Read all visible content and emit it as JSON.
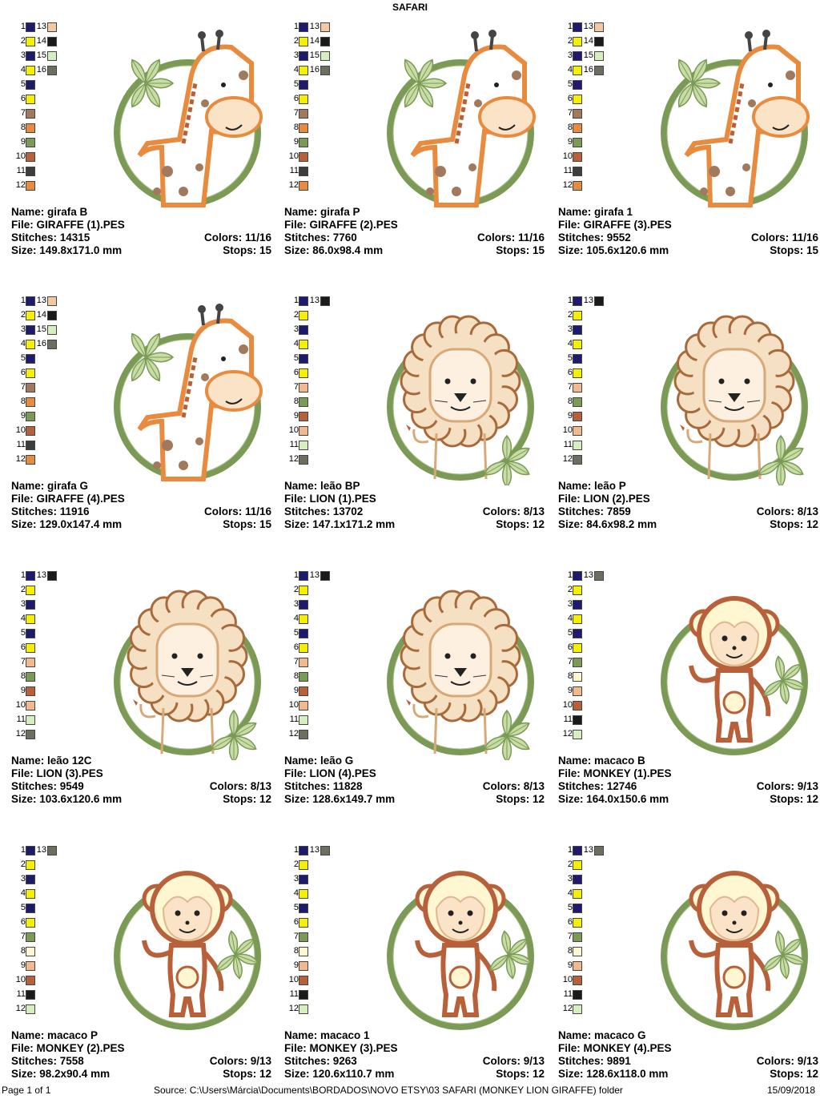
{
  "page_title": "SAFARI",
  "colors": {
    "1": "#1e1a6e",
    "2": "#f5f000",
    "3": "#1e1a6e",
    "4": "#f5f000",
    "navy": "#1e1a6e",
    "yellow": "#f5f000",
    "peach": "#f3c9a3",
    "black": "#1a1a1a",
    "lightgreen": "#d6efc0",
    "grey": "#6e6e60",
    "brown": "#a17a5d",
    "orange": "#e98b3f",
    "olive": "#7a9a55",
    "rust": "#b8603a",
    "dark": "#3d3d3d",
    "tan": "#f2b890",
    "cream": "#fff6d2"
  },
  "labels": {
    "name": "Name:",
    "file": "File:",
    "stitches": "Stitches:",
    "size": "Size:",
    "colors": "Colors:",
    "stops": "Stops:"
  },
  "designs": [
    {
      "name": "girafa B",
      "file": "GIRAFFE (1).PES",
      "stitches": "14315",
      "colors": "11/16",
      "size": "149.8x171.0 mm",
      "stops": "15",
      "animal": "giraffe",
      "swatches": [
        [
          "1",
          "navy",
          "13",
          "peach"
        ],
        [
          "2",
          "yellow",
          "14",
          "black"
        ],
        [
          "3",
          "navy",
          "15",
          "lightgreen"
        ],
        [
          "4",
          "yellow",
          "16",
          "grey"
        ],
        [
          "5",
          "navy"
        ],
        [
          "6",
          "yellow"
        ],
        [
          "7",
          "brown"
        ],
        [
          "8",
          "orange"
        ],
        [
          "9",
          "olive"
        ],
        [
          "10",
          "rust"
        ],
        [
          "11",
          "dark"
        ],
        [
          "12",
          "orange"
        ]
      ]
    },
    {
      "name": "girafa P",
      "file": "GIRAFFE (2).PES",
      "stitches": "7760",
      "colors": "11/16",
      "size": "86.0x98.4 mm",
      "stops": "15",
      "animal": "giraffe",
      "swatches": [
        [
          "1",
          "navy",
          "13",
          "peach"
        ],
        [
          "2",
          "yellow",
          "14",
          "black"
        ],
        [
          "3",
          "navy",
          "15",
          "lightgreen"
        ],
        [
          "4",
          "yellow",
          "16",
          "grey"
        ],
        [
          "5",
          "navy"
        ],
        [
          "6",
          "yellow"
        ],
        [
          "7",
          "brown"
        ],
        [
          "8",
          "orange"
        ],
        [
          "9",
          "olive"
        ],
        [
          "10",
          "rust"
        ],
        [
          "11",
          "dark"
        ],
        [
          "12",
          "orange"
        ]
      ]
    },
    {
      "name": "girafa 1",
      "file": "GIRAFFE (3).PES",
      "stitches": "9552",
      "colors": "11/16",
      "size": "105.6x120.6 mm",
      "stops": "15",
      "animal": "giraffe",
      "swatches": [
        [
          "1",
          "navy",
          "13",
          "peach"
        ],
        [
          "2",
          "yellow",
          "14",
          "black"
        ],
        [
          "3",
          "navy",
          "15",
          "lightgreen"
        ],
        [
          "4",
          "yellow",
          "16",
          "grey"
        ],
        [
          "5",
          "navy"
        ],
        [
          "6",
          "yellow"
        ],
        [
          "7",
          "brown"
        ],
        [
          "8",
          "orange"
        ],
        [
          "9",
          "olive"
        ],
        [
          "10",
          "rust"
        ],
        [
          "11",
          "dark"
        ],
        [
          "12",
          "orange"
        ]
      ]
    },
    {
      "name": "girafa G",
      "file": "GIRAFFE (4).PES",
      "stitches": "11916",
      "colors": "11/16",
      "size": "129.0x147.4 mm",
      "stops": "15",
      "animal": "giraffe",
      "swatches": [
        [
          "1",
          "navy",
          "13",
          "peach"
        ],
        [
          "2",
          "yellow",
          "14",
          "black"
        ],
        [
          "3",
          "navy",
          "15",
          "lightgreen"
        ],
        [
          "4",
          "yellow",
          "16",
          "grey"
        ],
        [
          "5",
          "navy"
        ],
        [
          "6",
          "yellow"
        ],
        [
          "7",
          "brown"
        ],
        [
          "8",
          "orange"
        ],
        [
          "9",
          "olive"
        ],
        [
          "10",
          "rust"
        ],
        [
          "11",
          "dark"
        ],
        [
          "12",
          "orange"
        ]
      ]
    },
    {
      "name": "leão BP",
      "file": "LION (1).PES",
      "stitches": "13702",
      "colors": "8/13",
      "size": "147.1x171.2 mm",
      "stops": "12",
      "animal": "lion",
      "swatches": [
        [
          "1",
          "navy",
          "13",
          "black"
        ],
        [
          "2",
          "yellow"
        ],
        [
          "3",
          "navy"
        ],
        [
          "4",
          "yellow"
        ],
        [
          "5",
          "navy"
        ],
        [
          "6",
          "yellow"
        ],
        [
          "7",
          "tan"
        ],
        [
          "8",
          "olive"
        ],
        [
          "9",
          "rust"
        ],
        [
          "10",
          "tan"
        ],
        [
          "11",
          "lightgreen"
        ],
        [
          "12",
          "grey"
        ]
      ]
    },
    {
      "name": "leão P",
      "file": "LION (2).PES",
      "stitches": "7859",
      "colors": "8/13",
      "size": "84.6x98.2 mm",
      "stops": "12",
      "animal": "lion",
      "swatches": [
        [
          "1",
          "navy",
          "13",
          "black"
        ],
        [
          "2",
          "yellow"
        ],
        [
          "3",
          "navy"
        ],
        [
          "4",
          "yellow"
        ],
        [
          "5",
          "navy"
        ],
        [
          "6",
          "yellow"
        ],
        [
          "7",
          "tan"
        ],
        [
          "8",
          "olive"
        ],
        [
          "9",
          "rust"
        ],
        [
          "10",
          "tan"
        ],
        [
          "11",
          "lightgreen"
        ],
        [
          "12",
          "grey"
        ]
      ]
    },
    {
      "name": "leão 12C",
      "file": "LION (3).PES",
      "stitches": "9549",
      "colors": "8/13",
      "size": "103.6x120.6 mm",
      "stops": "12",
      "animal": "lion",
      "swatches": [
        [
          "1",
          "navy",
          "13",
          "black"
        ],
        [
          "2",
          "yellow"
        ],
        [
          "3",
          "navy"
        ],
        [
          "4",
          "yellow"
        ],
        [
          "5",
          "navy"
        ],
        [
          "6",
          "yellow"
        ],
        [
          "7",
          "tan"
        ],
        [
          "8",
          "olive"
        ],
        [
          "9",
          "rust"
        ],
        [
          "10",
          "tan"
        ],
        [
          "11",
          "lightgreen"
        ],
        [
          "12",
          "grey"
        ]
      ]
    },
    {
      "name": "leão G",
      "file": "LION (4).PES",
      "stitches": "11828",
      "colors": "8/13",
      "size": "128.6x149.7 mm",
      "stops": "12",
      "animal": "lion",
      "swatches": [
        [
          "1",
          "navy",
          "13",
          "black"
        ],
        [
          "2",
          "yellow"
        ],
        [
          "3",
          "navy"
        ],
        [
          "4",
          "yellow"
        ],
        [
          "5",
          "navy"
        ],
        [
          "6",
          "yellow"
        ],
        [
          "7",
          "tan"
        ],
        [
          "8",
          "olive"
        ],
        [
          "9",
          "rust"
        ],
        [
          "10",
          "tan"
        ],
        [
          "11",
          "lightgreen"
        ],
        [
          "12",
          "grey"
        ]
      ]
    },
    {
      "name": "macaco B",
      "file": "MONKEY (1).PES",
      "stitches": "12746",
      "colors": "9/13",
      "size": "164.0x150.6 mm",
      "stops": "12",
      "animal": "monkey",
      "swatches": [
        [
          "1",
          "navy",
          "13",
          "grey"
        ],
        [
          "2",
          "yellow"
        ],
        [
          "3",
          "navy"
        ],
        [
          "4",
          "yellow"
        ],
        [
          "5",
          "navy"
        ],
        [
          "6",
          "yellow"
        ],
        [
          "7",
          "olive"
        ],
        [
          "8",
          "cream"
        ],
        [
          "9",
          "tan"
        ],
        [
          "10",
          "rust"
        ],
        [
          "11",
          "black"
        ],
        [
          "12",
          "lightgreen"
        ]
      ]
    },
    {
      "name": "macaco P",
      "file": "MONKEY (2).PES",
      "stitches": "7558",
      "colors": "9/13",
      "size": "98.2x90.4 mm",
      "stops": "12",
      "animal": "monkey",
      "swatches": [
        [
          "1",
          "navy",
          "13",
          "grey"
        ],
        [
          "2",
          "yellow"
        ],
        [
          "3",
          "navy"
        ],
        [
          "4",
          "yellow"
        ],
        [
          "5",
          "navy"
        ],
        [
          "6",
          "yellow"
        ],
        [
          "7",
          "olive"
        ],
        [
          "8",
          "cream"
        ],
        [
          "9",
          "tan"
        ],
        [
          "10",
          "rust"
        ],
        [
          "11",
          "black"
        ],
        [
          "12",
          "lightgreen"
        ]
      ]
    },
    {
      "name": "macaco 1",
      "file": "MONKEY (3).PES",
      "stitches": "9263",
      "colors": "9/13",
      "size": "120.6x110.7 mm",
      "stops": "12",
      "animal": "monkey",
      "swatches": [
        [
          "1",
          "navy",
          "13",
          "grey"
        ],
        [
          "2",
          "yellow"
        ],
        [
          "3",
          "navy"
        ],
        [
          "4",
          "yellow"
        ],
        [
          "5",
          "navy"
        ],
        [
          "6",
          "yellow"
        ],
        [
          "7",
          "olive"
        ],
        [
          "8",
          "cream"
        ],
        [
          "9",
          "tan"
        ],
        [
          "10",
          "rust"
        ],
        [
          "11",
          "black"
        ],
        [
          "12",
          "lightgreen"
        ]
      ]
    },
    {
      "name": "macaco G",
      "file": "MONKEY (4).PES",
      "stitches": "9891",
      "colors": "9/13",
      "size": "128.6x118.0 mm",
      "stops": "12",
      "animal": "monkey",
      "swatches": [
        [
          "1",
          "navy",
          "13",
          "grey"
        ],
        [
          "2",
          "yellow"
        ],
        [
          "3",
          "navy"
        ],
        [
          "4",
          "yellow"
        ],
        [
          "5",
          "navy"
        ],
        [
          "6",
          "yellow"
        ],
        [
          "7",
          "olive"
        ],
        [
          "8",
          "cream"
        ],
        [
          "9",
          "tan"
        ],
        [
          "10",
          "rust"
        ],
        [
          "11",
          "black"
        ],
        [
          "12",
          "lightgreen"
        ]
      ]
    }
  ],
  "footer": {
    "page": "Page 1 of 1",
    "source": "Source: C:\\Users\\Márcia\\Documents\\BORDADOS\\NOVO ETSY\\03 SAFARI (MONKEY LION GIRAFFE) folder",
    "date": "15/09/2018"
  }
}
